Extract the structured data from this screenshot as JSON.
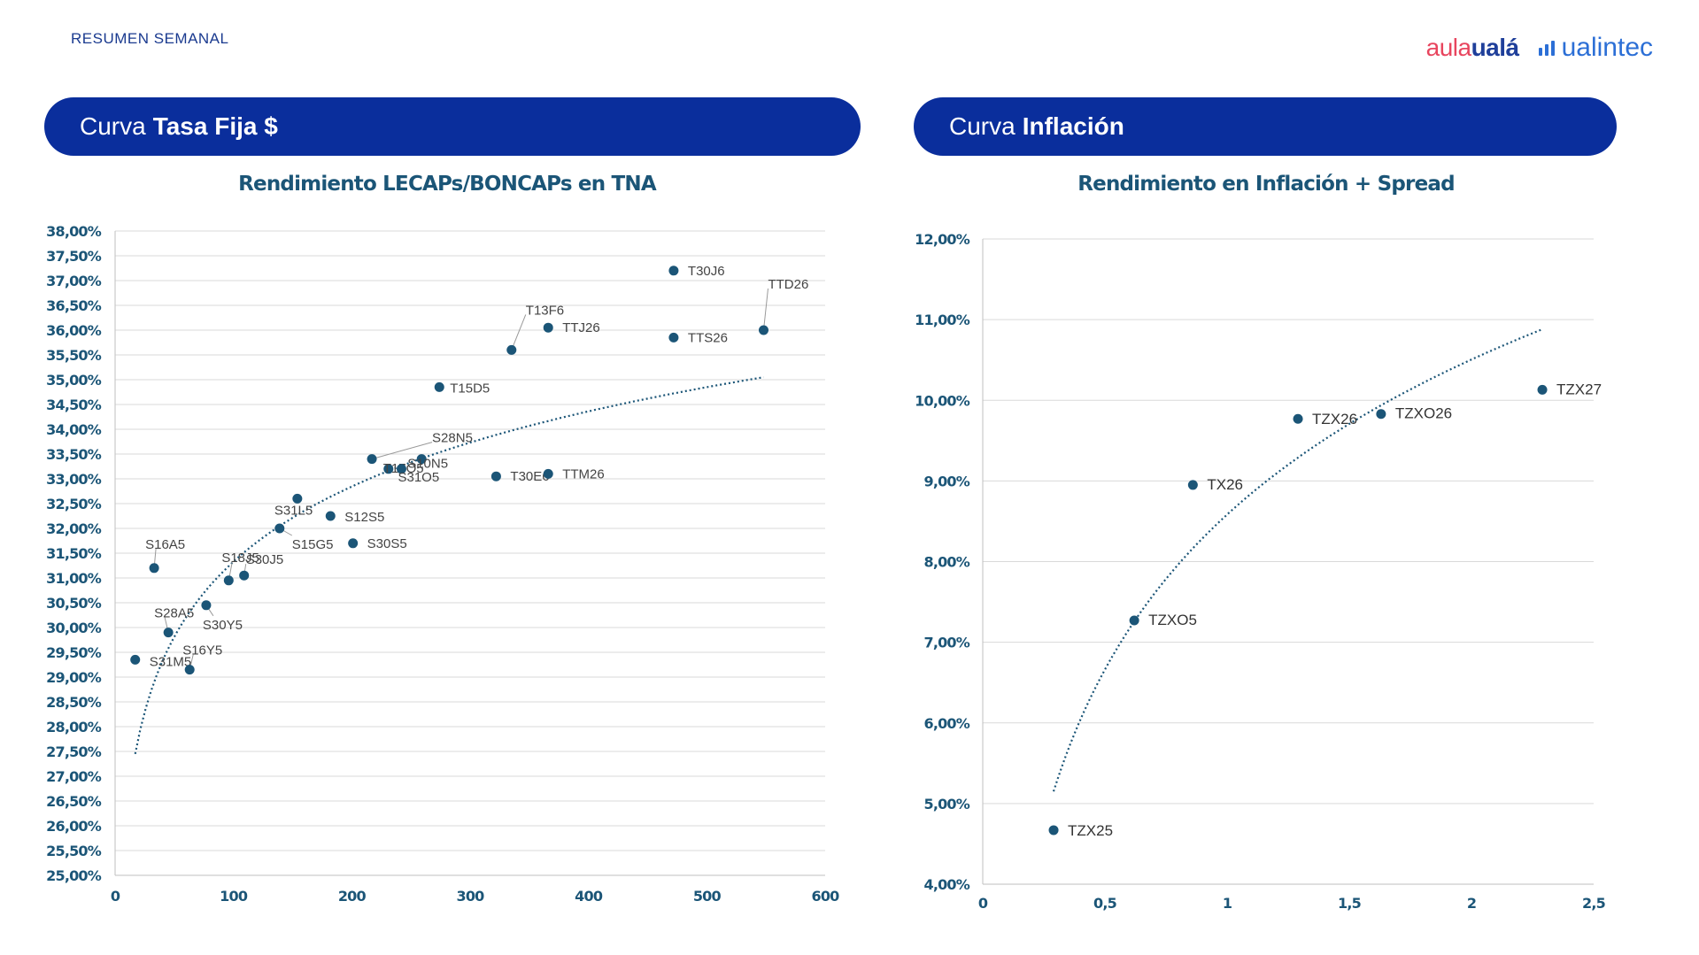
{
  "header": {
    "kicker": "RESUMEN SEMANAL",
    "logo_aula_part1": "aula",
    "logo_aula_part2": "ualá",
    "logo_ualintec": "ualintec"
  },
  "panels": {
    "left": {
      "title_prefix": "Curva",
      "title_bold": "Tasa Fija $",
      "subtitle": "Rendimiento LECAPs/BONCAPs en TNA"
    },
    "right": {
      "title_prefix": "Curva",
      "title_bold": "Inflación",
      "subtitle": "Rendimiento en Inflación + Spread"
    }
  },
  "colors": {
    "pill": "#0a2e9c",
    "point": "#1b5577",
    "trend": "#1b5577",
    "grid": "#d9d9d9"
  },
  "chart_data": [
    {
      "type": "scatter",
      "title": "Rendimiento LECAPs/BONCAPs en TNA",
      "xlim": [
        0,
        600
      ],
      "ylim": [
        25,
        38
      ],
      "x_ticks": [
        0,
        100,
        200,
        300,
        400,
        500,
        600
      ],
      "x_tick_labels": [
        "0",
        "100",
        "200",
        "300",
        "400",
        "500",
        "600"
      ],
      "y_ticks": [
        25,
        25.5,
        26,
        26.5,
        27,
        27.5,
        28,
        28.5,
        29,
        29.5,
        30,
        30.5,
        31,
        31.5,
        32,
        32.5,
        33,
        33.5,
        34,
        34.5,
        35,
        35.5,
        36,
        36.5,
        37,
        37.5,
        38
      ],
      "y_tick_labels": [
        "25,00%",
        "25,50%",
        "26,00%",
        "26,50%",
        "27,00%",
        "27,50%",
        "28,00%",
        "28,50%",
        "29,00%",
        "29,50%",
        "30,00%",
        "30,50%",
        "31,00%",
        "31,50%",
        "32,00%",
        "32,50%",
        "33,00%",
        "33,50%",
        "34,00%",
        "34,50%",
        "35,00%",
        "35,50%",
        "36,00%",
        "36,50%",
        "37,00%",
        "37,50%",
        "38,00%"
      ],
      "points": [
        {
          "label": "S31M5",
          "x": 17,
          "y": 29.35
        },
        {
          "label": "S16A5",
          "x": 33,
          "y": 31.2
        },
        {
          "label": "S28A5",
          "x": 45,
          "y": 29.9
        },
        {
          "label": "S16Y5",
          "x": 63,
          "y": 29.15
        },
        {
          "label": "S30Y5",
          "x": 77,
          "y": 30.45
        },
        {
          "label": "S18J5",
          "x": 96,
          "y": 30.95
        },
        {
          "label": "S30J5",
          "x": 109,
          "y": 31.05
        },
        {
          "label": "S15G5",
          "x": 139,
          "y": 32.0
        },
        {
          "label": "S31L5",
          "x": 154,
          "y": 32.6
        },
        {
          "label": "S12S5",
          "x": 182,
          "y": 32.25
        },
        {
          "label": "S30S5",
          "x": 201,
          "y": 31.7
        },
        {
          "label": "S28N5",
          "x": 217,
          "y": 33.4
        },
        {
          "label": "T17O5",
          "x": 231,
          "y": 33.2
        },
        {
          "label": "S31O5",
          "x": 242,
          "y": 33.2
        },
        {
          "label": "S10N5",
          "x": 259,
          "y": 33.4
        },
        {
          "label": "T15D5",
          "x": 274,
          "y": 34.85
        },
        {
          "label": "T30E6",
          "x": 322,
          "y": 33.05
        },
        {
          "label": "T13F6",
          "x": 335,
          "y": 35.6
        },
        {
          "label": "TTM26",
          "x": 366,
          "y": 33.1
        },
        {
          "label": "TTJ26",
          "x": 366,
          "y": 36.05
        },
        {
          "label": "T30J6",
          "x": 472,
          "y": 37.2
        },
        {
          "label": "TTS26",
          "x": 472,
          "y": 35.85
        },
        {
          "label": "TTD26",
          "x": 548,
          "y": 36.0
        }
      ],
      "trendline": {
        "kind": "logarithmic",
        "x_from": 17,
        "x_to": 548,
        "y_at_from": 27.45,
        "y_at_to": 35.05
      }
    },
    {
      "type": "scatter",
      "title": "Rendimiento en Inflación + Spread",
      "xlim": [
        0,
        2.5
      ],
      "ylim": [
        4,
        12
      ],
      "x_ticks": [
        0,
        0.5,
        1,
        1.5,
        2,
        2.5
      ],
      "x_tick_labels": [
        "0",
        "0,5",
        "1",
        "1,5",
        "2",
        "2,5"
      ],
      "y_ticks": [
        4,
        5,
        6,
        7,
        8,
        9,
        10,
        11,
        12
      ],
      "y_tick_labels": [
        "4,00%",
        "5,00%",
        "6,00%",
        "7,00%",
        "8,00%",
        "9,00%",
        "10,00%",
        "11,00%",
        "12,00%"
      ],
      "points": [
        {
          "label": "TZX25",
          "x": 0.29,
          "y": 4.67
        },
        {
          "label": "TZXO5",
          "x": 0.62,
          "y": 7.27
        },
        {
          "label": "TX26",
          "x": 0.86,
          "y": 8.95
        },
        {
          "label": "TZX26",
          "x": 1.29,
          "y": 9.77
        },
        {
          "label": "TZXO26",
          "x": 1.63,
          "y": 9.83
        },
        {
          "label": "TZX27",
          "x": 2.29,
          "y": 10.13
        }
      ],
      "trendline": {
        "kind": "logarithmic",
        "x_from": 0.29,
        "x_to": 2.29,
        "y_at_from": 5.15,
        "y_at_to": 10.88
      }
    }
  ]
}
